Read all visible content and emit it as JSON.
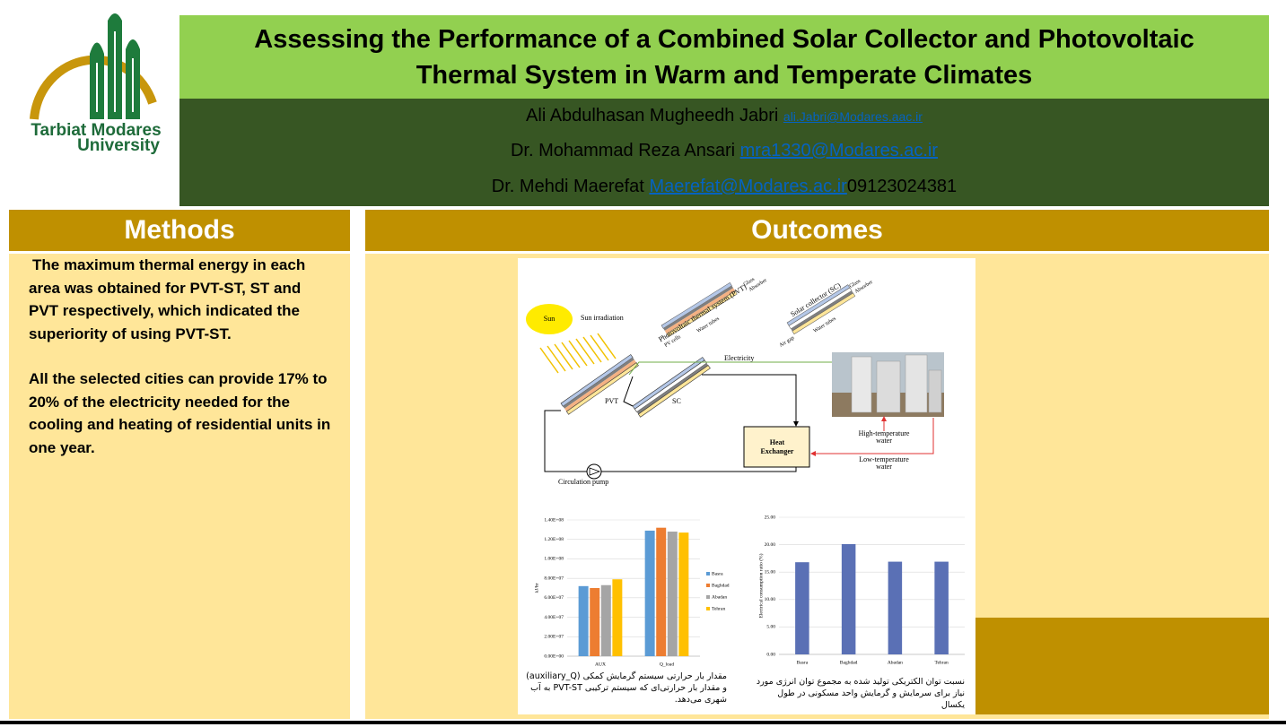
{
  "logo": {
    "line1": "Tarbiat Modares",
    "line2": "University"
  },
  "header": {
    "title": "Assessing the Performance of a Combined Solar Collector and Photovoltaic Thermal System in Warm and Temperate Climates",
    "authors": [
      {
        "name": "Ali Abdulhasan Mugheedh Jabri",
        "email": "ali.Jabri@Modares.aac.ir"
      },
      {
        "name": "Dr. Mohammad Reza Ansari",
        "email": "mra1330@Modares.ac.ir"
      },
      {
        "name": "Dr. Mehdi Maerefat",
        "email": "Maerefat@Modares.ac.ir",
        "phone": "09123024381"
      }
    ]
  },
  "methods": {
    "heading": "Methods",
    "paragraphs": [
      "The maximum thermal energy in each area was obtained for PVT-ST, ST and PVT respectively, which indicated the superiority of using PVT-ST.",
      "All the selected cities can provide 17% to 20% of the electricity needed for the cooling and heating of residential units in one year."
    ]
  },
  "outcomes": {
    "heading": "Outcomes",
    "diagram_labels": [
      "Sun",
      "Sun irradiation",
      "Photovoltaic thermal system (PVT)",
      "Glass",
      "Absorber",
      "PV cells",
      "Water tubes",
      "Solar collector (SC)",
      "Glass",
      "Absorber",
      "Air gap",
      "Water tubes",
      "Electricity",
      "PVT",
      "SC",
      "Heat",
      "Exchanger",
      "High-temperature",
      "water",
      "Low-temperature",
      "water",
      "Circulation pump"
    ],
    "captions": [
      "مقدار بار حرارتی سیستم گرمایش کمکی (auxiliary_Q) و مقدار بار حرارتی‌ای که سیستم ترکیبی PVT-ST به آب شهری می‌دهد.",
      "نسبت توان الکتریکی تولید شده به مجموع توان انرژی مورد نیاز برای سرمایش و گرمایش واحد مسکونی در طول یکسال"
    ]
  },
  "chart_data": [
    {
      "type": "bar",
      "y_label": "kJ/hr",
      "categories": [
        "AUX",
        "Q_load"
      ],
      "series": [
        {
          "name": "Basra",
          "color": "#5b9bd5",
          "values": [
            72000000,
            129000000
          ]
        },
        {
          "name": "Baghdad",
          "color": "#ed7d31",
          "values": [
            70000000,
            132000000
          ]
        },
        {
          "name": "Abadan",
          "color": "#a5a5a5",
          "values": [
            73000000,
            128000000
          ]
        },
        {
          "name": "Tehran",
          "color": "#ffc000",
          "values": [
            79000000,
            127000000
          ]
        }
      ],
      "ylim": [
        0,
        140000000
      ],
      "yticks": [
        {
          "value": 0,
          "label": "0.00E+00"
        },
        {
          "value": 20000000,
          "label": "2.00E+07"
        },
        {
          "value": 40000000,
          "label": "4.00E+07"
        },
        {
          "value": 60000000,
          "label": "6.00E+07"
        },
        {
          "value": 80000000,
          "label": "8.00E+07"
        },
        {
          "value": 100000000,
          "label": "1.00E+08"
        },
        {
          "value": 120000000,
          "label": "1.20E+08"
        },
        {
          "value": 140000000,
          "label": "1.40E+08"
        }
      ],
      "grid": true,
      "legend": "right"
    },
    {
      "type": "bar",
      "y_label": "Electrical consumption ratio (%)",
      "categories": [
        "Basra",
        "Baghdad",
        "Abadan",
        "Tehran"
      ],
      "values": [
        16.8,
        20.1,
        16.9,
        16.9
      ],
      "color": "#5a70b5",
      "ylim": [
        0,
        25
      ],
      "yticks": [
        {
          "value": 0,
          "label": "0.00"
        },
        {
          "value": 5,
          "label": "5.00"
        },
        {
          "value": 10,
          "label": "10.00"
        },
        {
          "value": 15,
          "label": "15.00"
        },
        {
          "value": 20,
          "label": "20.00"
        },
        {
          "value": 25,
          "label": "25.00"
        }
      ],
      "grid": true
    }
  ]
}
